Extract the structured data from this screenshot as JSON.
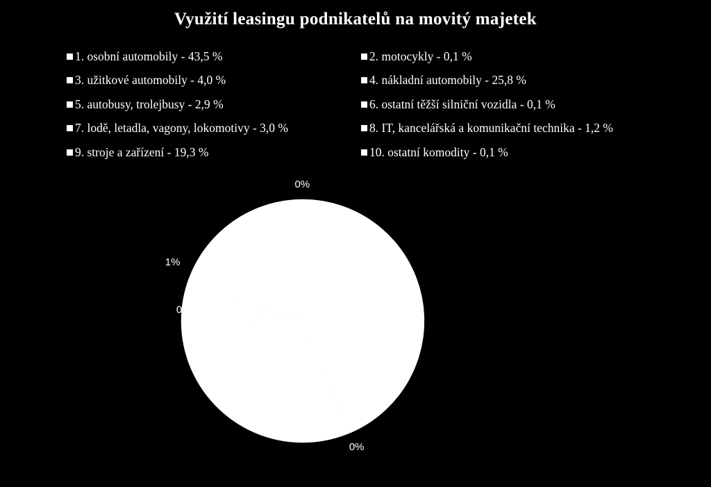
{
  "chart_data": {
    "type": "pie",
    "title": "Využití leasingu podnikatelů na movitý majetek",
    "legend_position": "top",
    "slice_color": "#ffffff",
    "background_color": "#000000",
    "categories": [
      "1. osobní automobily - 43,5 %",
      "2. motocykly -  0,1 %",
      "3. užitkové automobily - 4,0 %",
      "4. nákladní automobily - 25,8 %",
      "5. autobusy, trolejbusy - 2,9 %",
      "6. ostatní těžší silniční vozidla - 0,1 %",
      "7. lodě, letadla, vagony, lokomotivy - 3,0 %",
      "8. IT, kancelářská a komunikační technika - 1,2 %",
      "9. stroje a zařízení - 19,3 %",
      "10. ostatní komodity - 0,1 %"
    ],
    "values": [
      43.5,
      0.1,
      4.0,
      25.8,
      2.9,
      0.1,
      3.0,
      1.2,
      19.3,
      0.1
    ],
    "data_labels": [
      {
        "slice": 1,
        "text": "0%"
      },
      {
        "slice": 5,
        "text": "0%"
      },
      {
        "slice": 7,
        "text": "1%"
      },
      {
        "slice": 9,
        "text": "0%"
      }
    ]
  }
}
